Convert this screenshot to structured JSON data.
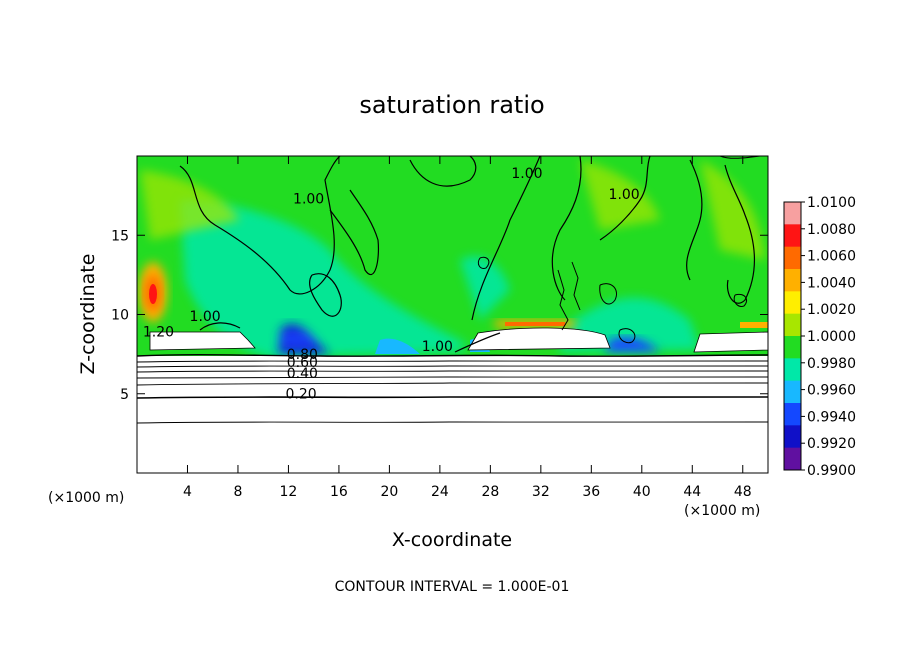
{
  "chart_data": {
    "type": "heatmap",
    "title": "saturation ratio",
    "xlabel": "X-coordinate",
    "ylabel": "Z-coordinate",
    "x_unit": "(×1000 m)",
    "x_unit_right": "(×1000 m)",
    "footer": "CONTOUR INTERVAL = 1.000E-01",
    "xlim": [
      0,
      50
    ],
    "ylim": [
      0,
      20
    ],
    "x_ticks": [
      4,
      8,
      12,
      16,
      20,
      24,
      28,
      32,
      36,
      40,
      44,
      48
    ],
    "y_ticks": [
      5,
      10,
      15
    ],
    "colorbar": {
      "ticks": [
        "1.0100",
        "1.0080",
        "1.0060",
        "1.0040",
        "1.0020",
        "1.0000",
        "0.9980",
        "0.9960",
        "0.9940",
        "0.9920",
        "0.9900"
      ],
      "colors": [
        "#f7a0a0",
        "#ff1414",
        "#ff6a00",
        "#ffb000",
        "#ffee00",
        "#a8e600",
        "#22dc22",
        "#00e8a8",
        "#18b8ff",
        "#1448ff",
        "#1010c8",
        "#6010a0"
      ]
    },
    "contour_labels": [
      {
        "text": "1.00",
        "x": 13.6,
        "y": 17.0
      },
      {
        "text": "1.00",
        "x": 30.9,
        "y": 18.6
      },
      {
        "text": "1.00",
        "x": 38.6,
        "y": 17.3
      },
      {
        "text": "1.20",
        "x": 1.7,
        "y": 8.6
      },
      {
        "text": "1.00",
        "x": 5.4,
        "y": 9.6
      },
      {
        "text": "1.00",
        "x": 23.8,
        "y": 7.7
      },
      {
        "text": "0.80",
        "x": 13.1,
        "y": 7.2
      },
      {
        "text": "0.60",
        "x": 13.1,
        "y": 6.7
      },
      {
        "text": "0.40",
        "x": 13.1,
        "y": 6.0
      },
      {
        "text": "0.20",
        "x": 13.0,
        "y": 4.7
      }
    ]
  }
}
